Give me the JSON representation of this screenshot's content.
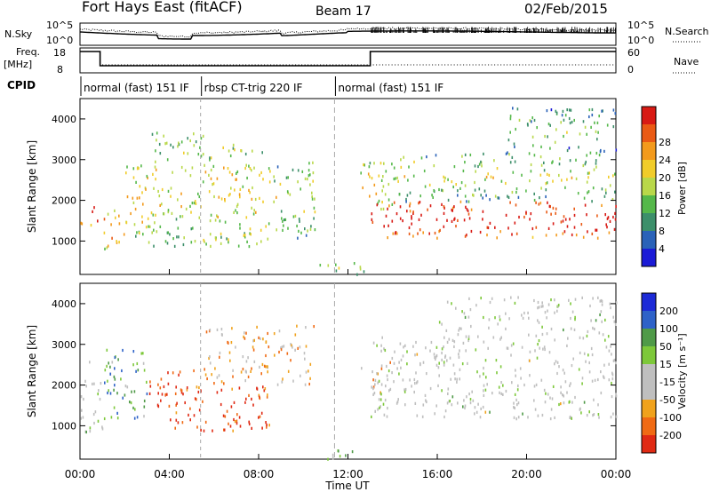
{
  "header": {
    "station": "Fort Hays East (fitACF)",
    "beam": "Beam 17",
    "date": "02/Feb/2015"
  },
  "strip": {
    "nsky_label": "N.Sky",
    "nsky_ticks": [
      "10^5",
      "10^0"
    ],
    "nsearch_label": "N.Search",
    "nsearch_ticks": [
      "10^5",
      "10^0"
    ],
    "freq_label_1": "Freq.",
    "freq_label_2": "[MHz]",
    "freq_ticks": [
      "18",
      "8"
    ],
    "nave_label": "Nave",
    "nave_ticks": [
      "60",
      "0"
    ],
    "cpid_label": "CPID",
    "cpid_segments": [
      {
        "label": "normal (fast) 151 IF",
        "start_h": 0.0,
        "end_h": 5.4
      },
      {
        "label": "rbsp CT-trig 220 IF",
        "start_h": 5.4,
        "end_h": 11.4
      },
      {
        "label": "normal (fast) 151 IF",
        "start_h": 11.4,
        "end_h": 24.0
      }
    ],
    "freq_steps": [
      {
        "start_h": 0.0,
        "end_h": 0.9,
        "mhz": 18
      },
      {
        "start_h": 0.9,
        "end_h": 13.0,
        "mhz": 10
      },
      {
        "start_h": 13.0,
        "end_h": 24.0,
        "mhz": 18
      }
    ]
  },
  "chart_data": [
    {
      "type": "heatmap",
      "title": "",
      "ylabel": "Slant Range [km]",
      "xlabel": "",
      "ylim": [
        180,
        4500
      ],
      "yticks": [
        "1000",
        "2000",
        "3000",
        "4000"
      ],
      "colorbar": {
        "label": "Power [dB]",
        "ticks": [
          "4",
          "8",
          "12",
          "16",
          "20",
          "24",
          "28"
        ],
        "colors": [
          "#1b1bd6",
          "#2a62b8",
          "#3c8f6a",
          "#55b84a",
          "#b9d84a",
          "#f1cc2a",
          "#f39a1c",
          "#ea5a14",
          "#d81a14"
        ]
      },
      "regions": [
        {
          "start_h": 0.0,
          "end_h": 0.9,
          "r_low": 1400,
          "r_high": 2100,
          "level": 0.75
        },
        {
          "start_h": 0.9,
          "end_h": 2.0,
          "r_low": 800,
          "r_high": 1800,
          "level": 0.55
        },
        {
          "start_h": 2.0,
          "end_h": 3.0,
          "r_low": 1100,
          "r_high": 3000,
          "level": 0.45
        },
        {
          "start_h": 3.0,
          "end_h": 5.5,
          "r_low": 900,
          "r_high": 3700,
          "level": 0.35
        },
        {
          "start_h": 5.5,
          "end_h": 8.5,
          "r_low": 900,
          "r_high": 3400,
          "level": 0.4
        },
        {
          "start_h": 8.5,
          "end_h": 10.5,
          "r_low": 1100,
          "r_high": 3000,
          "level": 0.3
        },
        {
          "start_h": 10.5,
          "end_h": 13.0,
          "r_low": 200,
          "r_high": 500,
          "level": 0.2
        },
        {
          "start_h": 12.5,
          "end_h": 14.0,
          "r_low": 1800,
          "r_high": 3000,
          "level": 0.4
        },
        {
          "start_h": 13.0,
          "end_h": 24.0,
          "r_low": 1100,
          "r_high": 2000,
          "level": 0.8
        },
        {
          "start_h": 14.0,
          "end_h": 24.0,
          "r_low": 2000,
          "r_high": 3200,
          "level": 0.3
        },
        {
          "start_h": 19.0,
          "end_h": 24.0,
          "r_low": 3200,
          "r_high": 4300,
          "level": 0.2
        }
      ]
    },
    {
      "type": "heatmap",
      "title": "",
      "ylabel": "Slant Range [km]",
      "xlabel": "Time UT",
      "ylim": [
        180,
        4500
      ],
      "yticks": [
        "1000",
        "2000",
        "3000",
        "4000"
      ],
      "xticks": [
        "00:00",
        "04:00",
        "08:00",
        "12:00",
        "16:00",
        "20:00",
        "00:00"
      ],
      "colorbar": {
        "label": "Velocity [m s⁻¹]",
        "ticks": [
          "200",
          "100",
          "50",
          "15",
          "-15",
          "-50",
          "-100",
          "-200"
        ],
        "colors": [
          "#1c2ad6",
          "#2e62c8",
          "#4f9a48",
          "#7dc83a",
          "#bfbfbf",
          "#bfbfbf",
          "#f0a21c",
          "#f06a14",
          "#e02a14"
        ]
      },
      "regions": [
        {
          "start_h": 0.0,
          "end_h": 1.0,
          "r_low": 800,
          "r_high": 2600,
          "level": 0.5
        },
        {
          "start_h": 1.0,
          "end_h": 3.0,
          "r_low": 1200,
          "r_high": 3000,
          "level": 0.7
        },
        {
          "start_h": 3.0,
          "end_h": 5.5,
          "r_low": 1500,
          "r_high": 2400,
          "level": 0.05
        },
        {
          "start_h": 4.0,
          "end_h": 8.5,
          "r_low": 900,
          "r_high": 2000,
          "level": 0.1
        },
        {
          "start_h": 5.5,
          "end_h": 10.5,
          "r_low": 2000,
          "r_high": 3500,
          "level": 0.3
        },
        {
          "start_h": 11.0,
          "end_h": 13.0,
          "r_low": 200,
          "r_high": 500,
          "level": 0.6
        },
        {
          "start_h": 12.5,
          "end_h": 14.0,
          "r_low": 1800,
          "r_high": 2600,
          "level": 0.3
        },
        {
          "start_h": 13.0,
          "end_h": 24.0,
          "r_low": 1200,
          "r_high": 3200,
          "level": 0.5
        },
        {
          "start_h": 16.0,
          "end_h": 24.0,
          "r_low": 3200,
          "r_high": 4200,
          "level": 0.55
        }
      ]
    }
  ]
}
